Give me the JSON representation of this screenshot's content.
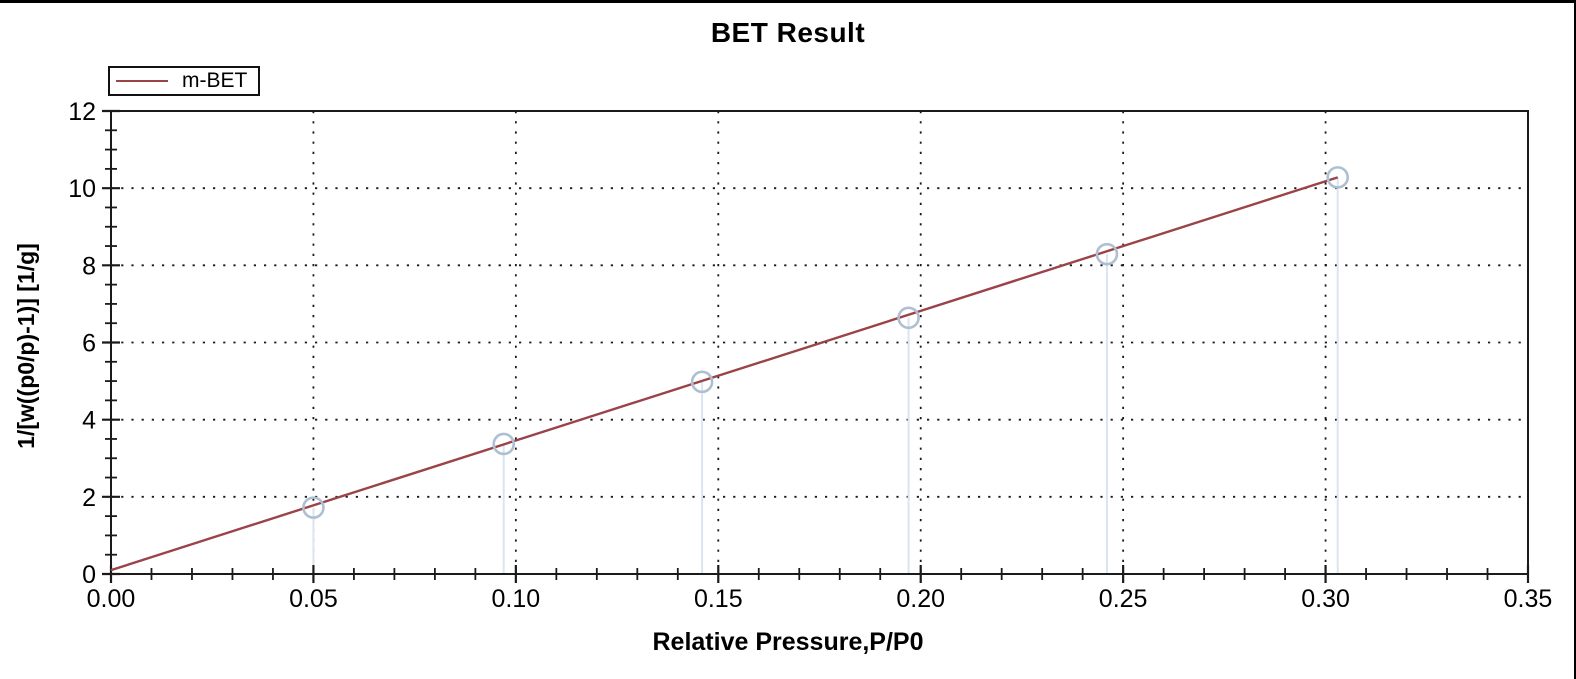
{
  "chart_data": {
    "type": "scatter",
    "title": "BET Result",
    "xlabel": "Relative Pressure,P/P0",
    "ylabel": "1/[w((p0/p)-1)] [1/g]",
    "legend": [
      {
        "name": "m-BET",
        "color": "#9a4348"
      }
    ],
    "xlim": [
      0.0,
      0.35
    ],
    "ylim": [
      0,
      12
    ],
    "x_tick_labels": [
      "0.00",
      "0.05",
      "0.10",
      "0.15",
      "0.20",
      "0.25",
      "0.30",
      "0.35"
    ],
    "x_tick_values": [
      0.0,
      0.05,
      0.1,
      0.15,
      0.2,
      0.25,
      0.3,
      0.35
    ],
    "y_tick_labels": [
      "0",
      "2",
      "4",
      "6",
      "8",
      "10",
      "12"
    ],
    "y_tick_values": [
      0,
      2,
      4,
      6,
      8,
      10,
      12
    ],
    "x_minor_step": 0.01,
    "y_minor_step": 0.5,
    "grid": "dotted-at-major-ticks",
    "points": [
      {
        "x": 0.05,
        "y": 1.72
      },
      {
        "x": 0.097,
        "y": 3.37
      },
      {
        "x": 0.146,
        "y": 4.98
      },
      {
        "x": 0.197,
        "y": 6.64
      },
      {
        "x": 0.246,
        "y": 8.29
      },
      {
        "x": 0.303,
        "y": 10.28
      }
    ],
    "fit_line": {
      "x1": 0.0,
      "y1": 0.1,
      "x2": 0.303,
      "y2": 10.28
    },
    "series_style": {
      "marker": "open-circle",
      "droplines": true
    },
    "colors": {
      "line": "#9a4348",
      "marker": "#aebfd2",
      "dropline": "#d9e5f2",
      "grid": "#1a1a1a",
      "axis": "#1a1a1a",
      "text": "#000000"
    }
  }
}
